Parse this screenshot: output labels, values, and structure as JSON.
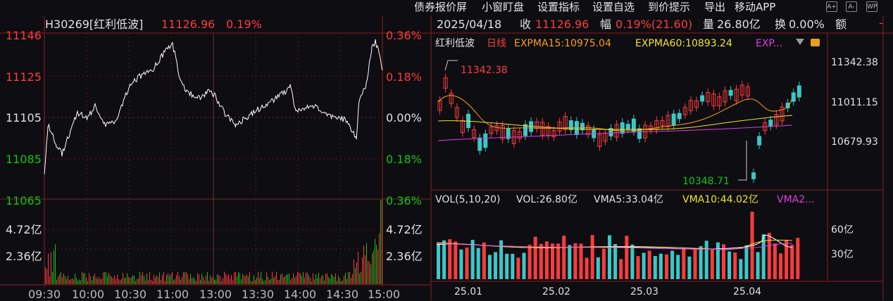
{
  "menu": {
    "items": [
      "债券报价屏",
      "小窗盯盘",
      "设置指标",
      "设置自选",
      "到价提示",
      "导出",
      "移动APP"
    ],
    "tools": [
      "A+",
      "A-",
      "WP"
    ]
  },
  "intraday": {
    "title": "H30269[红利低波]",
    "price": "11126.96",
    "pct": "0.19%",
    "price_ticks": [
      "11146",
      "11125",
      "11105",
      "11085",
      "11065"
    ],
    "pct_ticks": [
      "0.36%",
      "0.18%",
      "0.00%",
      "0.18%",
      "0.36%"
    ],
    "vol_ticks_left": [
      "4.72亿",
      "2.36亿"
    ],
    "vol_ticks_right": [
      "4.72亿",
      "2.36亿"
    ],
    "time_ticks": [
      "09:30",
      "10:00",
      "10:30",
      "11:00",
      "13:00",
      "13:30",
      "14:00",
      "14:30",
      "15:00"
    ],
    "colors": {
      "up": "#ff3b3b",
      "down": "#12c512",
      "line": "#ffffff"
    }
  },
  "daily_header": {
    "date": "2025/04/18",
    "close_label": "收",
    "close": "11126.96",
    "amp_label": "幅",
    "amp": "0.19%(21.60)",
    "vol_label": "量",
    "vol": "26.80亿",
    "turn_label": "换",
    "turn": "0.00%",
    "amt_label": "额"
  },
  "kline": {
    "name": "红利低波",
    "period": "日线",
    "ema15": "EXPMA15:10975.04",
    "ema60": "EXPMA60:10893.24",
    "ema_more": "EXP...",
    "high_label": "11342.38",
    "low_label": "10348.71",
    "price_ticks": [
      "11342.38",
      "11011.15",
      "10679.93"
    ],
    "date_ticks": [
      "25.01",
      "25.02",
      "25.03",
      "25.04"
    ],
    "colors": {
      "up": "#ff3b3b",
      "down": "#39c9c9",
      "ema15": "#ff9d1a",
      "ema60": "#f2e230",
      "ema_more": "#e03ee0"
    }
  },
  "volume": {
    "title": "VOL(5,10,20)",
    "vol": "VOL:26.80亿",
    "vma5": "VMA5:33.04亿",
    "vma10": "VMA10:44.02亿",
    "vma20": "VMA2...",
    "ticks": [
      "60亿",
      "30亿"
    ]
  }
}
